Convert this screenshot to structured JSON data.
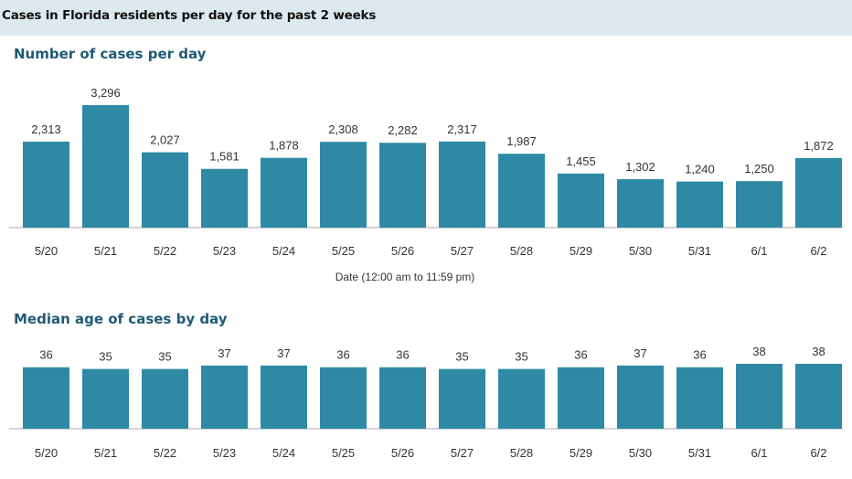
{
  "header": {
    "title": "Cases in Florida residents per day for the past 2 weeks"
  },
  "colors": {
    "bar": "#2e8aa4",
    "banner": "#dde9ee",
    "section_title": "#1f5a74",
    "axis": "#aaaaaa"
  },
  "chart_data": [
    {
      "type": "bar",
      "title": "Number of cases per day",
      "xlabel": "Date (12:00 am to 11:59 pm)",
      "ylabel": "",
      "categories": [
        "5/20",
        "5/21",
        "5/22",
        "5/23",
        "5/24",
        "5/25",
        "5/26",
        "5/27",
        "5/28",
        "5/29",
        "5/30",
        "5/31",
        "6/1",
        "6/2"
      ],
      "values": [
        2313,
        3296,
        2027,
        1581,
        1878,
        2308,
        2282,
        2317,
        1987,
        1455,
        1302,
        1240,
        1250,
        1872
      ],
      "value_labels": [
        "2,313",
        "3,296",
        "2,027",
        "1,581",
        "1,878",
        "2,308",
        "2,282",
        "2,317",
        "1,987",
        "1,455",
        "1,302",
        "1,240",
        "1,250",
        "1,872"
      ],
      "ylim": [
        0,
        3296
      ],
      "grid": false,
      "legend": "none"
    },
    {
      "type": "bar",
      "title": "Median age of cases by day",
      "xlabel": "",
      "ylabel": "",
      "categories": [
        "5/20",
        "5/21",
        "5/22",
        "5/23",
        "5/24",
        "5/25",
        "5/26",
        "5/27",
        "5/28",
        "5/29",
        "5/30",
        "5/31",
        "6/1",
        "6/2"
      ],
      "values": [
        36,
        35,
        35,
        37,
        37,
        36,
        36,
        35,
        35,
        36,
        37,
        36,
        38,
        38
      ],
      "value_labels": [
        "36",
        "35",
        "35",
        "37",
        "37",
        "36",
        "36",
        "35",
        "35",
        "36",
        "37",
        "36",
        "38",
        "38"
      ],
      "ylim": [
        0,
        38
      ],
      "grid": false,
      "legend": "none"
    }
  ]
}
